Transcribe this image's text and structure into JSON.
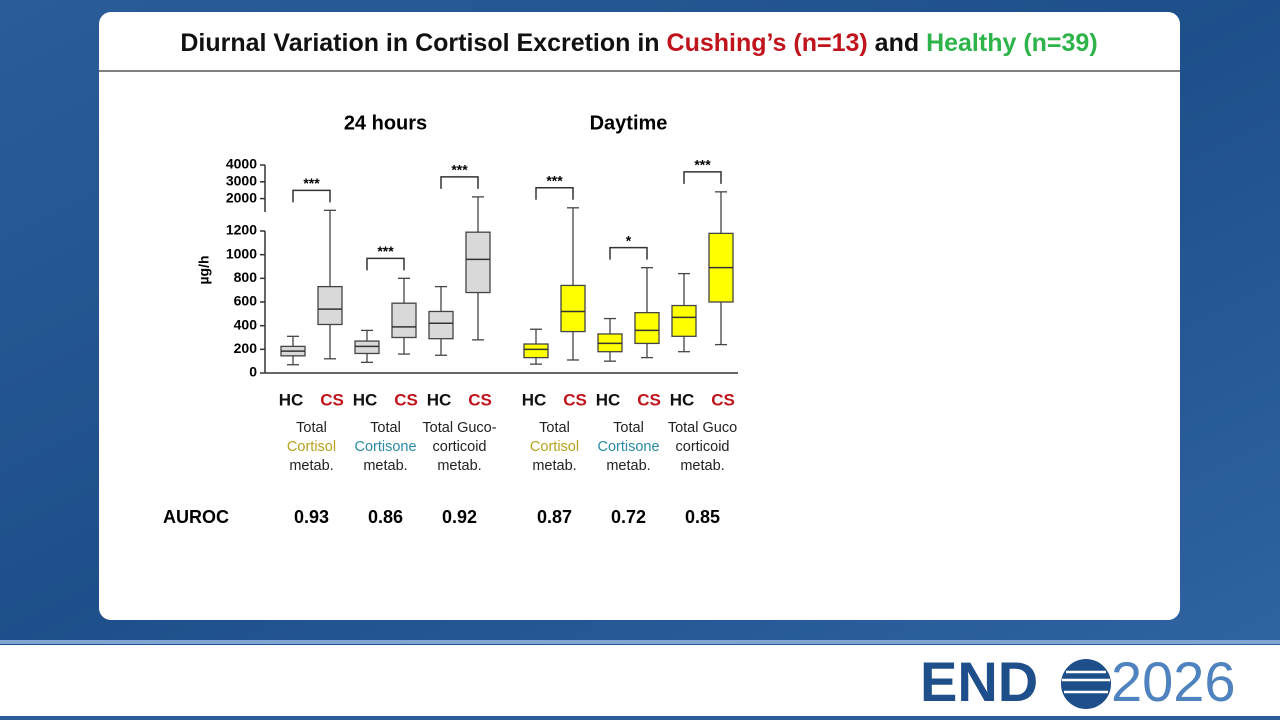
{
  "chart_data": {
    "type": "box",
    "title_parts": [
      {
        "text": "Diurnal Variation in Cortisol Excretion in ",
        "color": "#111111"
      },
      {
        "text": "Cushing’s (n=13)",
        "color": "#c0141c"
      },
      {
        "text": " and ",
        "color": "#111111"
      },
      {
        "text": "Healthy (n=39)",
        "color": "#2eb34a"
      }
    ],
    "ylabel": "µg/h",
    "ylim": [
      0,
      1200
    ],
    "yticks": [
      0,
      200,
      400,
      600,
      800,
      1000,
      1200
    ],
    "y2lim": [
      1200,
      4000
    ],
    "y2ticks": [
      2000,
      3000,
      4000
    ],
    "box_labels": [
      {
        "text": "HC",
        "color": "#111111"
      },
      {
        "text": "CS",
        "color": "#c0141c"
      }
    ],
    "auroc_label": "AUROC",
    "panels": [
      {
        "title": "24 hours",
        "color": "#d9d9d9",
        "groups": [
          {
            "label_lines": [
              [
                {
                  "text": "Total",
                  "color": "#222222"
                }
              ],
              [
                {
                  "text": "Cortisol",
                  "color": "#b8a020"
                }
              ],
              [
                {
                  "text": "metab.",
                  "color": "#222222"
                }
              ]
            ],
            "sig": "***",
            "auroc": 0.93,
            "boxes": [
              {
                "min": 70,
                "q1": 145,
                "median": 185,
                "q3": 225,
                "max": 310
              },
              {
                "min": 120,
                "q1": 410,
                "median": 540,
                "q3": 730,
                "max": 1300
              }
            ]
          },
          {
            "label_lines": [
              [
                {
                  "text": "Total",
                  "color": "#222222"
                }
              ],
              [
                {
                  "text": "Cortisone",
                  "color": "#2a8aa8"
                }
              ],
              [
                {
                  "text": "metab.",
                  "color": "#222222"
                }
              ]
            ],
            "sig": "***",
            "auroc": 0.86,
            "boxes": [
              {
                "min": 90,
                "q1": 165,
                "median": 225,
                "q3": 270,
                "max": 360
              },
              {
                "min": 160,
                "q1": 300,
                "median": 390,
                "q3": 590,
                "max": 800
              }
            ]
          },
          {
            "label_lines": [
              [
                {
                  "text": "Total Guco-",
                  "color": "#222222"
                }
              ],
              [
                {
                  "text": "corticoid",
                  "color": "#222222"
                }
              ],
              [
                {
                  "text": "metab.",
                  "color": "#222222"
                }
              ]
            ],
            "sig": "***",
            "auroc": 0.92,
            "boxes": [
              {
                "min": 150,
                "q1": 290,
                "median": 420,
                "q3": 520,
                "max": 730
              },
              {
                "min": 280,
                "q1": 680,
                "median": 960,
                "q3": 1190,
                "max": 2100
              }
            ]
          }
        ]
      },
      {
        "title": "Daytime",
        "color": "#ffff00",
        "groups": [
          {
            "label_lines": [
              [
                {
                  "text": "Total",
                  "color": "#222222"
                }
              ],
              [
                {
                  "text": "Cortisol",
                  "color": "#b8a020"
                }
              ],
              [
                {
                  "text": "metab.",
                  "color": "#222222"
                }
              ]
            ],
            "sig": "***",
            "auroc": 0.87,
            "boxes": [
              {
                "min": 75,
                "q1": 130,
                "median": 200,
                "q3": 245,
                "max": 370
              },
              {
                "min": 110,
                "q1": 350,
                "median": 520,
                "q3": 740,
                "max": 1450
              }
            ]
          },
          {
            "label_lines": [
              [
                {
                  "text": "Total",
                  "color": "#222222"
                }
              ],
              [
                {
                  "text": "Cortisone",
                  "color": "#2a8aa8"
                }
              ],
              [
                {
                  "text": "metab.",
                  "color": "#222222"
                }
              ]
            ],
            "sig": "*",
            "auroc": 0.72,
            "boxes": [
              {
                "min": 100,
                "q1": 180,
                "median": 250,
                "q3": 330,
                "max": 460
              },
              {
                "min": 130,
                "q1": 250,
                "median": 360,
                "q3": 510,
                "max": 890
              }
            ]
          },
          {
            "label_lines": [
              [
                {
                  "text": "Total Guco",
                  "color": "#222222"
                }
              ],
              [
                {
                  "text": "corticoid",
                  "color": "#222222"
                }
              ],
              [
                {
                  "text": "metab.",
                  "color": "#222222"
                }
              ]
            ],
            "sig": "***",
            "auroc": 0.85,
            "boxes": [
              {
                "min": 180,
                "q1": 310,
                "median": 470,
                "q3": 570,
                "max": 840
              },
              {
                "min": 240,
                "q1": 600,
                "median": 890,
                "q3": 1180,
                "max": 2400
              }
            ]
          }
        ]
      }
    ],
    "logo": {
      "left": "END",
      "right": "2026"
    }
  }
}
